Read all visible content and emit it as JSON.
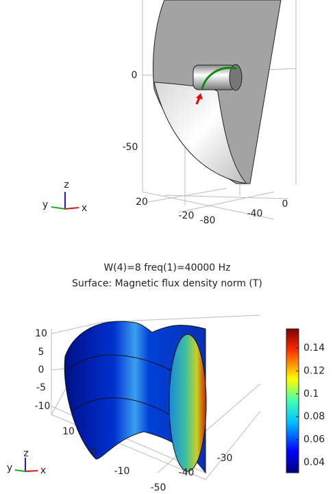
{
  "top_view": {
    "z_ticks": [
      "0",
      "-50"
    ],
    "y_ticks": [
      "20",
      "-20"
    ],
    "x_ticks": [
      "-80",
      "-40",
      "0"
    ],
    "triad": {
      "z": "z",
      "y": "y",
      "x": "x"
    }
  },
  "bottom_view": {
    "title": [
      "W(4)=8 freq(1)=40000 Hz",
      "Surface: Magnetic flux density norm (T)"
    ],
    "z_ticks": [
      "10",
      "5",
      "0",
      "-5",
      "-10"
    ],
    "y_ticks": [
      "10",
      "0",
      "-10",
      "-50"
    ],
    "x_ticks": [
      "-30",
      "-40"
    ],
    "triad": {
      "z": "z",
      "y": "y",
      "x": "x"
    },
    "colorbar": {
      "ticks": [
        "0.14",
        "0.12",
        "0.1",
        "0.08",
        "0.06",
        "0.04"
      ]
    }
  }
}
